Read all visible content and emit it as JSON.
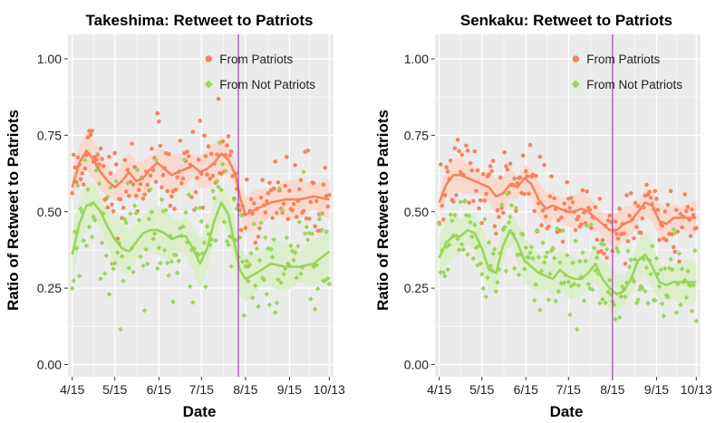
{
  "figure": {
    "x_axis_title": "Date",
    "y_axis_title": "Ratio of Retweet to Patriots"
  },
  "legend": {
    "patriots_label": "From Patriots",
    "not_patriots_label": "From Not Patriots"
  },
  "colors": {
    "patriots": "#f4845f",
    "not_patriots": "#99d65a",
    "patriots_band": "#fbd6c8",
    "not_patriots_band": "#d9efc6",
    "vline": "#a040b0",
    "panel_bg": "#ebebeb",
    "grid": "#ffffff"
  },
  "chart_data": [
    {
      "type": "scatter",
      "title": "Takeshima: Retweet to Patriots",
      "xlabel": "Date",
      "ylabel": "Ratio of Retweet to Patriots",
      "x_tick_labels": [
        "4/15",
        "5/15",
        "6/15",
        "7/15",
        "8/15",
        "9/15",
        "10/13"
      ],
      "x_tick_days": [
        0,
        30,
        61,
        91,
        122,
        153,
        181
      ],
      "xlim_days": [
        -3,
        184
      ],
      "y_ticks": [
        0,
        0.25,
        0.5,
        0.75,
        1.0
      ],
      "y_tick_labels": [
        "0.00",
        "0.25",
        "0.50",
        "0.75",
        "1.00"
      ],
      "ylim": [
        -0.04,
        1.08
      ],
      "vline_day": 117,
      "legend_position": "top-right",
      "grid": true,
      "smooth_days": [
        0,
        5,
        10,
        15,
        20,
        25,
        30,
        35,
        40,
        45,
        50,
        55,
        60,
        65,
        70,
        75,
        80,
        85,
        90,
        95,
        100,
        105,
        110,
        115,
        118,
        122,
        130,
        140,
        150,
        160,
        170,
        181
      ],
      "series": [
        {
          "name": "From Patriots",
          "smooth_values": [
            0.58,
            0.66,
            0.7,
            0.67,
            0.63,
            0.6,
            0.58,
            0.6,
            0.63,
            0.6,
            0.61,
            0.64,
            0.66,
            0.64,
            0.62,
            0.63,
            0.64,
            0.65,
            0.63,
            0.64,
            0.66,
            0.69,
            0.67,
            0.62,
            0.55,
            0.49,
            0.51,
            0.53,
            0.54,
            0.54,
            0.55,
            0.54
          ],
          "band_halfwidth": 0.04,
          "noise": 0.07,
          "seed": 11
        },
        {
          "name": "From Not Patriots",
          "smooth_values": [
            0.36,
            0.46,
            0.52,
            0.53,
            0.5,
            0.45,
            0.41,
            0.38,
            0.37,
            0.4,
            0.43,
            0.44,
            0.44,
            0.43,
            0.41,
            0.42,
            0.42,
            0.38,
            0.33,
            0.38,
            0.47,
            0.53,
            0.49,
            0.38,
            0.31,
            0.28,
            0.3,
            0.33,
            0.32,
            0.32,
            0.33,
            0.37
          ],
          "band_halfwidth": 0.05,
          "noise": 0.1,
          "seed": 23
        }
      ]
    },
    {
      "type": "scatter",
      "title": "Senkaku: Retweet to Patriots",
      "xlabel": "Date",
      "ylabel": "Ratio of Retweet to Patriots",
      "x_tick_labels": [
        "4/15",
        "5/15",
        "6/15",
        "7/15",
        "8/15",
        "9/15",
        "10/13"
      ],
      "x_tick_days": [
        0,
        30,
        61,
        91,
        122,
        153,
        181
      ],
      "xlim_days": [
        -3,
        184
      ],
      "y_ticks": [
        0,
        0.25,
        0.5,
        0.75,
        1.0
      ],
      "y_tick_labels": [
        "0.00",
        "0.25",
        "0.50",
        "0.75",
        "1.00"
      ],
      "ylim": [
        -0.04,
        1.08
      ],
      "vline_day": 122,
      "legend_position": "top-right",
      "grid": true,
      "smooth_days": [
        0,
        5,
        10,
        15,
        20,
        25,
        30,
        35,
        40,
        45,
        50,
        55,
        60,
        65,
        70,
        75,
        80,
        85,
        90,
        95,
        100,
        105,
        110,
        115,
        120,
        125,
        130,
        135,
        140,
        145,
        150,
        155,
        160,
        165,
        170,
        175,
        181
      ],
      "series": [
        {
          "name": "From Patriots",
          "smooth_values": [
            0.53,
            0.59,
            0.62,
            0.62,
            0.61,
            0.6,
            0.59,
            0.58,
            0.55,
            0.56,
            0.59,
            0.58,
            0.61,
            0.59,
            0.54,
            0.51,
            0.52,
            0.51,
            0.5,
            0.5,
            0.51,
            0.5,
            0.48,
            0.46,
            0.44,
            0.44,
            0.46,
            0.47,
            0.5,
            0.53,
            0.52,
            0.47,
            0.46,
            0.48,
            0.48,
            0.48,
            0.48
          ],
          "band_halfwidth": 0.035,
          "noise": 0.06,
          "seed": 37
        },
        {
          "name": "From Not Patriots",
          "smooth_values": [
            0.35,
            0.4,
            0.42,
            0.42,
            0.44,
            0.43,
            0.38,
            0.31,
            0.3,
            0.39,
            0.44,
            0.4,
            0.34,
            0.32,
            0.3,
            0.29,
            0.28,
            0.31,
            0.29,
            0.28,
            0.28,
            0.3,
            0.33,
            0.28,
            0.25,
            0.23,
            0.24,
            0.28,
            0.34,
            0.36,
            0.32,
            0.27,
            0.26,
            0.27,
            0.27,
            0.27,
            0.27
          ],
          "band_halfwidth": 0.045,
          "noise": 0.08,
          "seed": 51
        }
      ]
    }
  ]
}
